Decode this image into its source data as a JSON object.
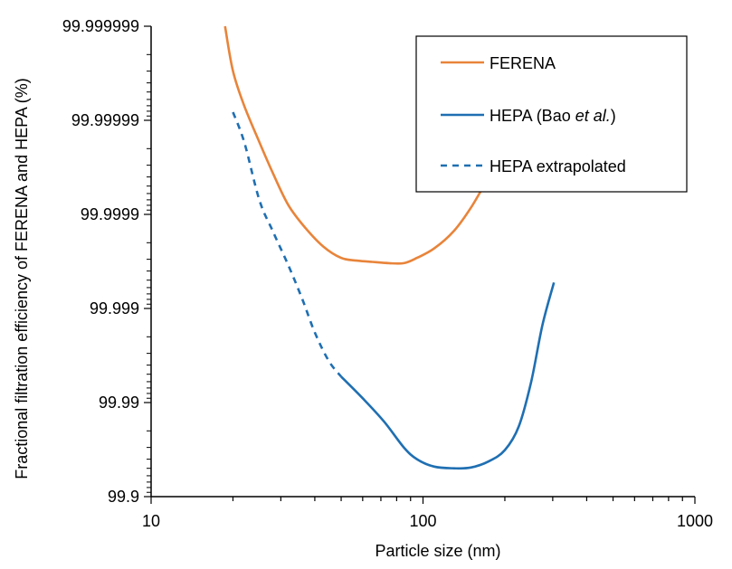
{
  "chart_data": {
    "type": "line",
    "xlabel": "Particle size (nm)",
    "ylabel": "Fractional filtration efficiency  of FERENA and HEPA  (%)",
    "x_scale": "log",
    "y_scale": "log-penetration",
    "xlim": [
      10,
      1000
    ],
    "ylim": [
      99.9,
      99.999999
    ],
    "x_ticks": [
      10,
      100,
      1000
    ],
    "x_tick_labels": [
      "10",
      "100",
      "1000"
    ],
    "y_ticks": [
      99.9,
      99.99,
      99.999,
      99.9999,
      99.99999,
      99.999999
    ],
    "y_tick_labels": [
      "99.9",
      "99.99",
      "99.999",
      "99.9999",
      "99.99999",
      "99.999999"
    ],
    "grid": false,
    "legend_position": "top-right",
    "legend": {
      "entries": [
        {
          "series_index": 0,
          "label": "FERENA"
        },
        {
          "series_index": 1,
          "label_prefix": "HEPA (Bao ",
          "label_italic": "et al.",
          "label_suffix": ")"
        },
        {
          "series_index": 2,
          "label": "HEPA extrapolated"
        }
      ]
    },
    "series": [
      {
        "name": "FERENA",
        "color": "#E8843A",
        "dash": "solid",
        "points": [
          [
            18.7,
            99.999999
          ],
          [
            20,
            99.999997
          ],
          [
            22,
            99.999993
          ],
          [
            25,
            99.999983
          ],
          [
            28,
            99.999964
          ],
          [
            32,
            99.99992
          ],
          [
            37,
            99.99986
          ],
          [
            43,
            99.99978
          ],
          [
            50,
            99.99971
          ],
          [
            57,
            99.99969
          ],
          [
            65,
            99.99968
          ],
          [
            75,
            99.99967
          ],
          [
            85,
            99.99967
          ],
          [
            95,
            99.99971
          ],
          [
            110,
            99.99977
          ],
          [
            130,
            99.99985
          ],
          [
            150,
            99.999915
          ],
          [
            173,
            99.999958
          ]
        ]
      },
      {
        "name": "HEPA (Bao et al.)",
        "color": "#1F6FB2",
        "dash": "solid",
        "points": [
          [
            50,
            99.9947
          ],
          [
            60,
            99.991
          ],
          [
            72,
            99.984
          ],
          [
            85,
            99.97
          ],
          [
            95,
            99.96
          ],
          [
            110,
            99.952
          ],
          [
            130,
            99.95
          ],
          [
            150,
            99.951
          ],
          [
            175,
            99.958
          ],
          [
            200,
            99.968
          ],
          [
            225,
            99.982
          ],
          [
            250,
            99.994
          ],
          [
            275,
            99.9985
          ],
          [
            303,
            99.99947
          ]
        ]
      },
      {
        "name": "HEPA extrapolated",
        "color": "#1F6FB2",
        "dash": "dashed",
        "points": [
          [
            20,
            99.9999918
          ],
          [
            22,
            99.999983
          ],
          [
            25,
            99.99993
          ],
          [
            28,
            99.99985
          ],
          [
            32,
            99.99965
          ],
          [
            36,
            99.9992
          ],
          [
            40,
            99.9982
          ],
          [
            45,
            99.9964
          ],
          [
            50,
            99.9947
          ]
        ]
      }
    ]
  }
}
